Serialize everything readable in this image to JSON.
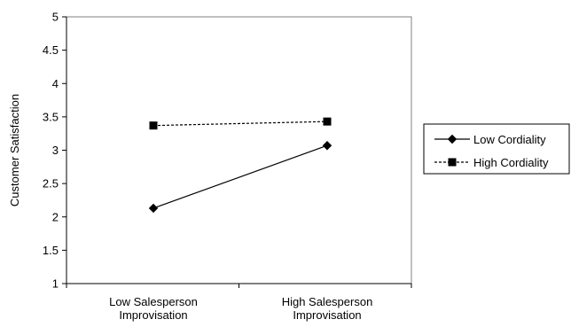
{
  "chart_data": {
    "type": "line",
    "title": "",
    "xlabel": "",
    "ylabel": "Customer Satisfaction",
    "categories": [
      [
        "Low Salesperson",
        "Improvisation"
      ],
      [
        "High Salesperson",
        "Improvisation"
      ]
    ],
    "ylim": [
      1,
      5
    ],
    "yticks": [
      "1",
      "1.5",
      "2",
      "2.5",
      "3",
      "3.5",
      "4",
      "4.5",
      "5"
    ],
    "grid": false,
    "legend_position": "right",
    "series": [
      {
        "name": "Low Cordiality",
        "values": [
          2.13,
          3.07
        ],
        "marker": "diamond",
        "line_style": "solid",
        "color": "#000000"
      },
      {
        "name": "High Cordiality",
        "values": [
          3.37,
          3.43
        ],
        "marker": "square",
        "line_style": "dashed",
        "color": "#000000"
      }
    ]
  }
}
